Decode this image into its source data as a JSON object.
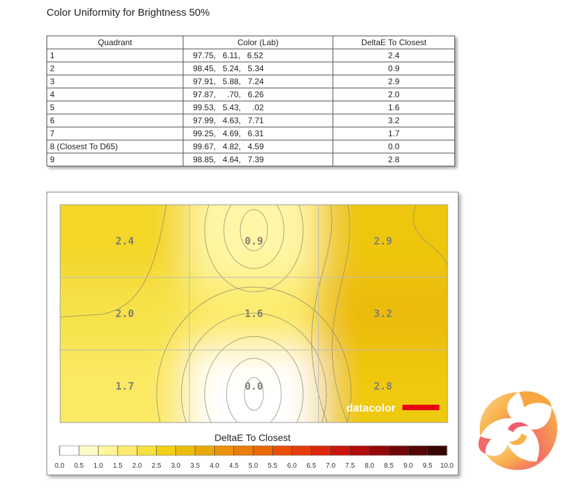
{
  "page_title": "Color Uniformity for Brightness 50%",
  "table": {
    "headers": [
      "Quadrant",
      "Color (Lab)",
      "DeltaE To Closest"
    ],
    "rows": [
      {
        "quadrant": "1",
        "lab": "97.75,   6.11,   6.52",
        "delta": "2.4"
      },
      {
        "quadrant": "2",
        "lab": "98.45,   5.24,   5.34",
        "delta": "0.9"
      },
      {
        "quadrant": "3",
        "lab": "97.91,   5.88,   7.24",
        "delta": "2.9"
      },
      {
        "quadrant": "4",
        "lab": "97.87,     .70,   6.26",
        "delta": "2.0"
      },
      {
        "quadrant": "5",
        "lab": "99.53,   5.43,     .02",
        "delta": "1.6"
      },
      {
        "quadrant": "6",
        "lab": "97.99,   4.63,   7.71",
        "delta": "3.2"
      },
      {
        "quadrant": "7",
        "lab": "99.25,   4.69,   6.31",
        "delta": "1.7"
      },
      {
        "quadrant": "8 (Closest To D65)",
        "lab": "99.67,   4.82,   4.59",
        "delta": "0.0"
      },
      {
        "quadrant": "9",
        "lab": "98.85,   4.64,   7.39",
        "delta": "2.8"
      }
    ]
  },
  "chart_data": {
    "type": "heatmap",
    "title": "",
    "grid_rows": 3,
    "grid_cols": 3,
    "values": [
      [
        2.4,
        0.9,
        2.9
      ],
      [
        2.0,
        1.6,
        3.2
      ],
      [
        1.7,
        0.0,
        2.8
      ]
    ],
    "labels": [
      [
        "2.4",
        "0.9",
        "2.9"
      ],
      [
        "2.0",
        "1.6",
        "3.2"
      ],
      [
        "1.7",
        "0.0",
        "2.8"
      ]
    ],
    "grid": true,
    "colorbar": {
      "label": "DeltaE To Closest",
      "range": [
        0.0,
        10.0
      ],
      "ticks": [
        "0.0",
        "0.5",
        "1.0",
        "1.5",
        "2.0",
        "2.5",
        "3.0",
        "3.5",
        "4.0",
        "4.5",
        "5.0",
        "5.5",
        "6.0",
        "6.5",
        "7.0",
        "7.5",
        "8.0",
        "8.5",
        "9.0",
        "9.5",
        "10.0"
      ],
      "colors": [
        "#ffffff",
        "#fffbc8",
        "#fff59a",
        "#fcec6e",
        "#f6df3e",
        "#f0cf14",
        "#ecbd08",
        "#eaa806",
        "#ea9306",
        "#ea7e06",
        "#ea6808",
        "#e8500a",
        "#e63c0c",
        "#de280e",
        "#c8160c",
        "#b00c0a",
        "#940808",
        "#720606",
        "#540404",
        "#380303"
      ]
    },
    "watermark": "datacolor",
    "watermark_color": "#e60012"
  },
  "logo": {
    "name": "kitguru-logo-icon",
    "colors": [
      "#f9b24a",
      "#f25c6e",
      "#fbd59a"
    ]
  }
}
